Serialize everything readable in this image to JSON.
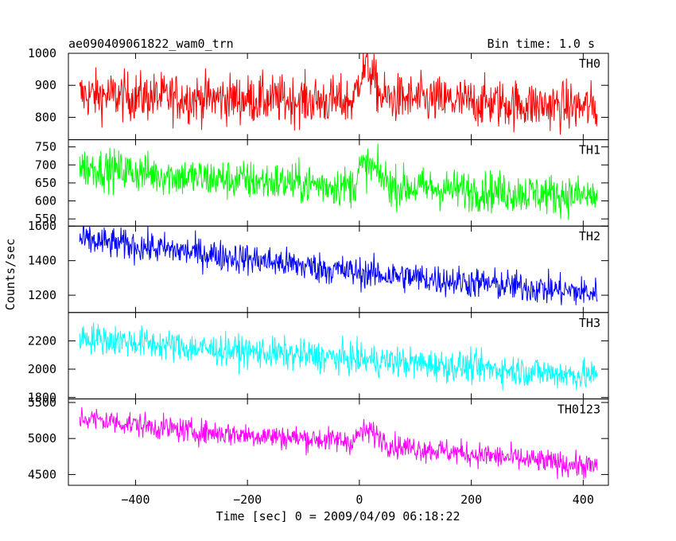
{
  "chart_data": {
    "type": "line",
    "title": "ae090409061822_wam0_trn",
    "subtitle": "Bin time: 1.0 s",
    "xlabel": "Time [sec] 0 = 2009/04/09 06:18:22",
    "ylabel": "Counts/sec",
    "xlim": [
      -520,
      445
    ],
    "x_ticks": [
      -400,
      -200,
      0,
      200,
      400
    ],
    "x_start": -500,
    "x_end": 425,
    "grid": false,
    "legend": "none",
    "panels": [
      {
        "name": "TH0",
        "color": "#ff0000",
        "ylim": [
          730,
          1000
        ],
        "y_ticks": [
          800,
          900,
          1000
        ],
        "baseline": [
          [
            -500,
            870
          ],
          [
            -300,
            860
          ],
          [
            -10,
            850
          ],
          [
            0,
            930
          ],
          [
            15,
            960
          ],
          [
            40,
            860
          ],
          [
            425,
            830
          ]
        ],
        "noise": 38
      },
      {
        "name": "TH1",
        "color": "#00ff00",
        "ylim": [
          530,
          770
        ],
        "y_ticks": [
          550,
          600,
          650,
          700,
          750
        ],
        "baseline": [
          [
            -500,
            695
          ],
          [
            -300,
            665
          ],
          [
            -10,
            640
          ],
          [
            0,
            690
          ],
          [
            20,
            695
          ],
          [
            60,
            640
          ],
          [
            425,
            612
          ]
        ],
        "noise": 28
      },
      {
        "name": "TH2",
        "color": "#0000ff",
        "ylim": [
          1100,
          1600
        ],
        "y_ticks": [
          1200,
          1400,
          1600
        ],
        "baseline": [
          [
            -500,
            1520
          ],
          [
            -300,
            1450
          ],
          [
            0,
            1330
          ],
          [
            425,
            1210
          ]
        ],
        "noise": 45
      },
      {
        "name": "TH3",
        "color": "#00ffff",
        "ylim": [
          1790,
          2400
        ],
        "y_ticks": [
          1800,
          2000,
          2200
        ],
        "baseline": [
          [
            -500,
            2230
          ],
          [
            -300,
            2150
          ],
          [
            0,
            2070
          ],
          [
            425,
            1950
          ]
        ],
        "noise": 55
      },
      {
        "name": "TH0123",
        "color": "#ff00ff",
        "ylim": [
          4350,
          5550
        ],
        "y_ticks": [
          4500,
          5000,
          5500
        ],
        "baseline": [
          [
            -500,
            5290
          ],
          [
            -300,
            5100
          ],
          [
            -10,
            4960
          ],
          [
            0,
            5080
          ],
          [
            20,
            5100
          ],
          [
            60,
            4900
          ],
          [
            425,
            4600
          ]
        ],
        "noise": 85
      }
    ]
  }
}
